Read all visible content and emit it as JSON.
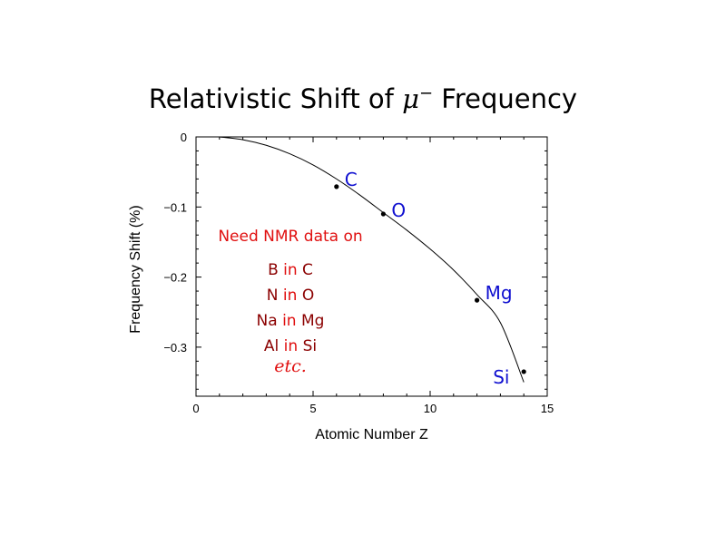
{
  "title_prefix": "Relativistic Shift of ",
  "title_mu": "μ",
  "title_sup": "−",
  "title_suffix": " Frequency",
  "chart_data": {
    "type": "scatter",
    "title": "Relativistic Shift of μ− Frequency",
    "xlabel": "Atomic Number Z",
    "ylabel": "Frequency Shift (%)",
    "xlim": [
      0,
      15
    ],
    "ylim": [
      -0.37,
      0
    ],
    "x_ticks": [
      0,
      5,
      10,
      15
    ],
    "x_tick_labels": [
      "0",
      "5",
      "10",
      "15"
    ],
    "y_ticks": [
      0,
      -0.1,
      -0.2,
      -0.3
    ],
    "y_tick_labels": [
      "0",
      "−0.1",
      "−0.2",
      "−0.3"
    ],
    "points": [
      {
        "label": "C",
        "x": 6,
        "y": -0.071
      },
      {
        "label": "O",
        "x": 8,
        "y": -0.11
      },
      {
        "label": "Mg",
        "x": 12,
        "y": -0.233
      },
      {
        "label": "Si",
        "x": 14,
        "y": -0.335
      }
    ],
    "curve": {
      "x": [
        1,
        2,
        3,
        4,
        5,
        6,
        7,
        8,
        9,
        10,
        11,
        12,
        13,
        14
      ],
      "y": [
        0,
        -0.004,
        -0.012,
        -0.024,
        -0.04,
        -0.06,
        -0.083,
        -0.108,
        -0.133,
        -0.16,
        -0.19,
        -0.225,
        -0.265,
        -0.35
      ]
    },
    "grid": false,
    "legend": "none",
    "colors": {
      "labels": "#1010d0",
      "note": "#e01010",
      "note_element": "#8b0000"
    }
  },
  "annotation": {
    "heading": "Need NMR data on",
    "pairs": [
      {
        "a": "B",
        "in": "in",
        "b": "C"
      },
      {
        "a": "N",
        "in": "in",
        "b": "O"
      },
      {
        "a": "Na",
        "in": "in",
        "b": "Mg"
      },
      {
        "a": "Al",
        "in": "in",
        "b": "Si"
      }
    ],
    "etc": "etc."
  }
}
